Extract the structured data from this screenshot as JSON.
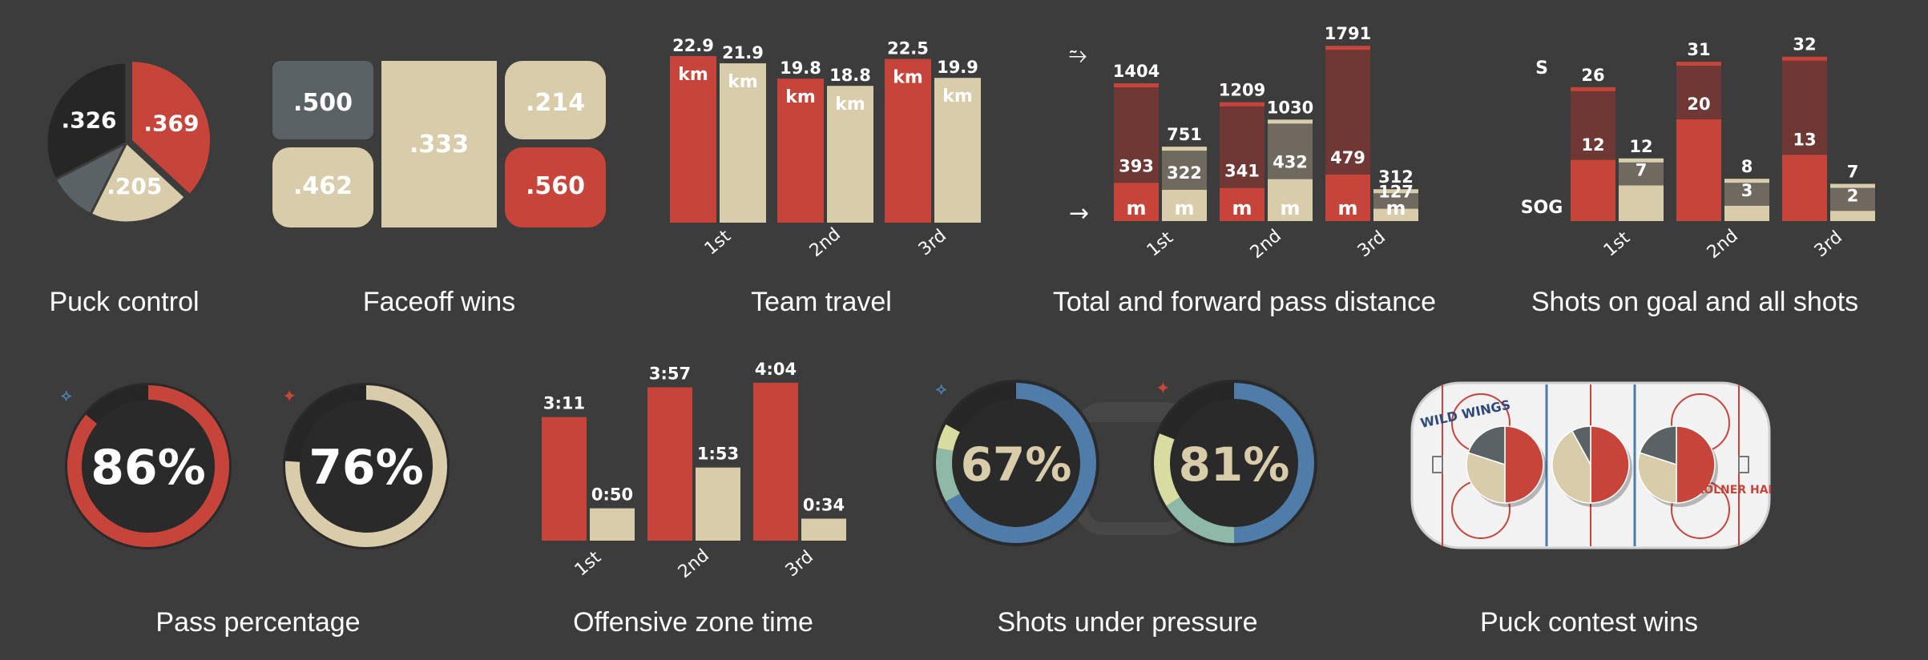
{
  "colors": {
    "red": "#c7443a",
    "cream": "#d8ccaa",
    "gray": "#5b6266",
    "black": "#262626",
    "darkred": "#6f3834",
    "darkgray": "#6f6960",
    "blue": "#4f7ca8",
    "teal": "#8fb8a8",
    "lime": "#d8dca0",
    "bg": "#3c3c3c"
  },
  "chart_data": [
    {
      "id": "puck-control",
      "type": "pie",
      "title": "Puck control",
      "slices": [
        {
          "value": 0.369,
          "label": ".369",
          "color": "#c7443a"
        },
        {
          "value": 0.205,
          "label": ".205",
          "color": "#d8ccaa"
        },
        {
          "value": 0.1,
          "label": "",
          "color": "#5b6266"
        },
        {
          "value": 0.326,
          "label": ".326",
          "color": "#262626"
        }
      ]
    },
    {
      "id": "faceoff-wins",
      "type": "table",
      "title": "Faceoff wins",
      "cells": [
        ".500",
        ".462",
        ".333",
        ".214",
        ".560"
      ]
    },
    {
      "id": "team-travel",
      "type": "bar",
      "title": "Team travel",
      "unit": "km",
      "categories": [
        "1st",
        "2nd",
        "3rd"
      ],
      "series": [
        {
          "values": [
            22.9,
            19.8,
            22.5
          ],
          "color": "#c7443a"
        },
        {
          "values": [
            21.9,
            18.8,
            19.9
          ],
          "color": "#d8ccaa"
        }
      ],
      "ylim": [
        0,
        24
      ]
    },
    {
      "id": "pass-distance",
      "type": "bar",
      "title": "Total and forward pass distance",
      "unit": "m",
      "categories": [
        "1st",
        "2nd",
        "3rd"
      ],
      "series": [
        {
          "total": [
            1404,
            1209,
            1791
          ],
          "forward": [
            393,
            341,
            479
          ],
          "color": "#c7443a"
        },
        {
          "total": [
            751,
            1030,
            312
          ],
          "forward": [
            322,
            432,
            127
          ],
          "color": "#d8ccaa"
        }
      ],
      "ylim": [
        0,
        1900
      ]
    },
    {
      "id": "shots",
      "type": "bar",
      "title": "Shots on goal and all shots",
      "labels": {
        "shots": "S",
        "sog": "SOG"
      },
      "categories": [
        "1st",
        "2nd",
        "3rd"
      ],
      "series": [
        {
          "shots": [
            26,
            31,
            32
          ],
          "sog": [
            12,
            20,
            13
          ],
          "color": "#c7443a"
        },
        {
          "shots": [
            12,
            8,
            7
          ],
          "sog": [
            7,
            3,
            2
          ],
          "color": "#d8ccaa"
        }
      ],
      "ylim": [
        0,
        34
      ]
    },
    {
      "id": "pass-percentage",
      "type": "pie",
      "title": "Pass percentage",
      "values": [
        {
          "value": 86,
          "label": "86%",
          "color": "#c7443a"
        },
        {
          "value": 76,
          "label": "76%",
          "color": "#d8ccaa"
        }
      ]
    },
    {
      "id": "oz-time",
      "type": "bar",
      "title": "Offensive zone time",
      "categories": [
        "1st",
        "2nd",
        "3rd"
      ],
      "series": [
        {
          "values": [
            191,
            237,
            244
          ],
          "labels": [
            "3:11",
            "3:57",
            "4:04"
          ],
          "color": "#c7443a"
        },
        {
          "values": [
            50,
            113,
            34
          ],
          "labels": [
            "0:50",
            "1:53",
            "0:34"
          ],
          "color": "#d8ccaa"
        }
      ],
      "ylim": [
        0,
        250
      ]
    },
    {
      "id": "shots-pressure",
      "type": "pie",
      "title": "Shots under pressure",
      "values": [
        {
          "value": 67,
          "label": "67%"
        },
        {
          "value": 81,
          "label": "81%"
        }
      ]
    },
    {
      "id": "puck-contest",
      "type": "pie",
      "title": "Puck contest wins",
      "pies": [
        [
          0.5,
          0.3,
          0.2
        ],
        [
          0.5,
          0.42,
          0.08
        ],
        [
          0.5,
          0.3,
          0.2
        ]
      ],
      "logos": {
        "team_a": "WILD WINGS",
        "team_b": "KÖLNER HAIE"
      }
    }
  ]
}
